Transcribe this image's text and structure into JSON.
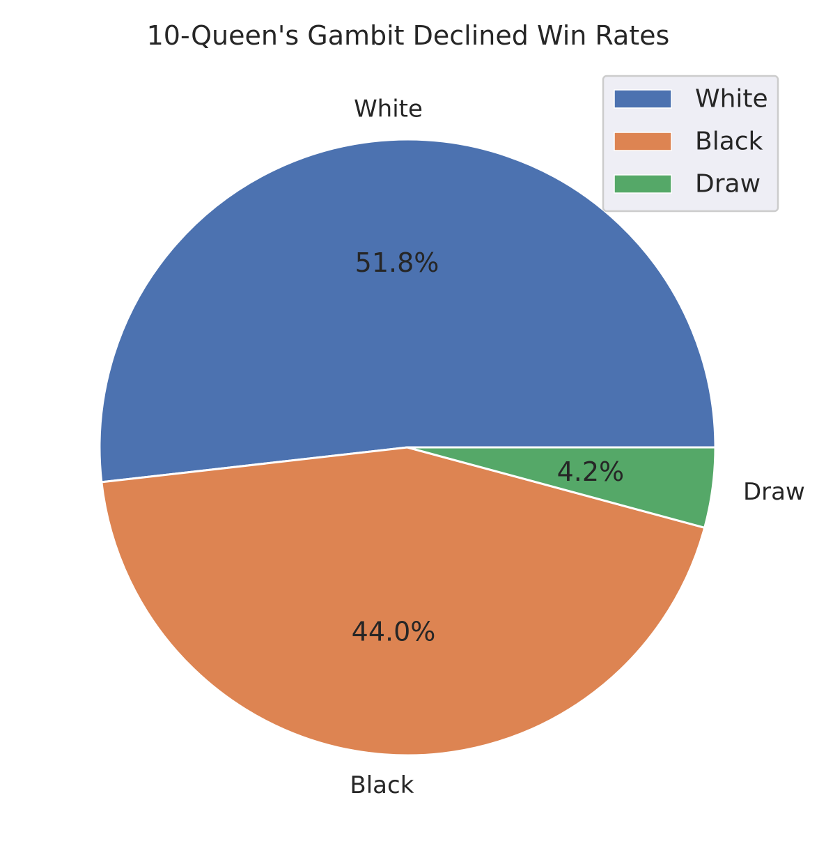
{
  "chart_data": {
    "type": "pie",
    "title": "10-Queen's Gambit Declined Win Rates",
    "labels": [
      "White",
      "Black",
      "Draw"
    ],
    "values": [
      51.8,
      44.0,
      4.2
    ],
    "percent_labels": [
      "51.8%",
      "44.0%",
      "4.2%"
    ],
    "colors": [
      "#4c72b0",
      "#dd8452",
      "#55a868"
    ],
    "start_angle_deg": 0,
    "direction": "counterclockwise",
    "legend": {
      "placement": "top-right",
      "entries": [
        "White",
        "Black",
        "Draw"
      ]
    }
  }
}
